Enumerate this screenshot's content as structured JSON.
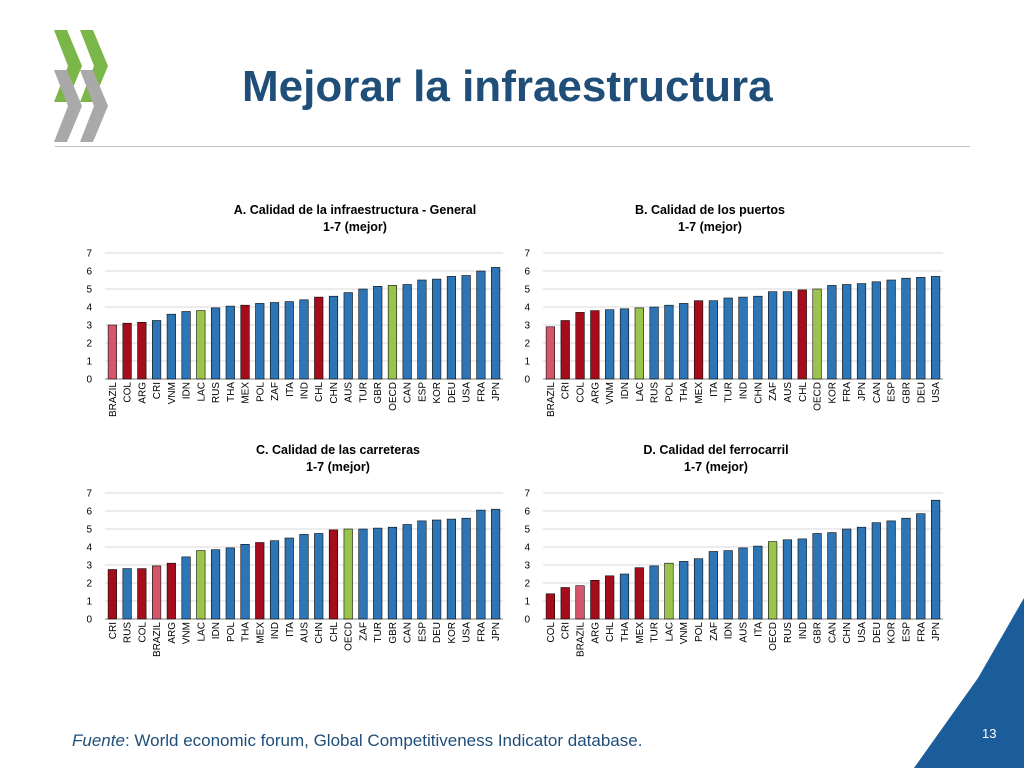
{
  "slide": {
    "title": "Mejorar la infraestructura",
    "source_label": "Fuente",
    "source_text": ": World economic forum, Global Competitiveness Indicator database.",
    "page_number": "13"
  },
  "colors": {
    "title": "#1f4e79",
    "blue_bar": "#2e75b6",
    "red_bar": "#a50d1c",
    "pink_bar": "#d4566a",
    "green_bar": "#9bc44c",
    "corner_blue": "#1a5d9a"
  },
  "chart_data": [
    {
      "type": "bar",
      "title": "A. Calidad de la infraestructura  - General",
      "subtitle": "1-7 (mejor)",
      "ylim": [
        0,
        7
      ],
      "yticks": [
        0,
        1,
        2,
        3,
        4,
        5,
        6,
        7
      ],
      "grid": true,
      "categories": [
        "BRAZIL",
        "COL",
        "ARG",
        "CRI",
        "VNM",
        "IDN",
        "LAC",
        "RUS",
        "THA",
        "MEX",
        "POL",
        "ZAF",
        "ITA",
        "IND",
        "CHL",
        "CHN",
        "AUS",
        "TUR",
        "GBR",
        "OECD",
        "CAN",
        "ESP",
        "KOR",
        "DEU",
        "USA",
        "FRA",
        "JPN"
      ],
      "values": [
        3.0,
        3.1,
        3.15,
        3.25,
        3.6,
        3.75,
        3.8,
        3.95,
        4.05,
        4.1,
        4.2,
        4.25,
        4.3,
        4.4,
        4.55,
        4.6,
        4.8,
        5.0,
        5.15,
        5.2,
        5.25,
        5.5,
        5.55,
        5.7,
        5.75,
        6.0,
        6.2
      ],
      "colors": [
        "pink",
        "red",
        "red",
        "blue",
        "blue",
        "blue",
        "green",
        "blue",
        "blue",
        "red",
        "blue",
        "blue",
        "blue",
        "blue",
        "red",
        "blue",
        "blue",
        "blue",
        "blue",
        "green",
        "blue",
        "blue",
        "blue",
        "blue",
        "blue",
        "blue",
        "blue"
      ]
    },
    {
      "type": "bar",
      "title": "B. Calidad de los puertos",
      "subtitle": "1-7 (mejor)",
      "ylim": [
        0,
        7
      ],
      "yticks": [
        0,
        1,
        2,
        3,
        4,
        5,
        6,
        7
      ],
      "grid": true,
      "categories": [
        "BRAZIL",
        "CRI",
        "COL",
        "ARG",
        "VNM",
        "IDN",
        "LAC",
        "RUS",
        "POL",
        "THA",
        "MEX",
        "ITA",
        "TUR",
        "IND",
        "CHN",
        "ZAF",
        "AUS",
        "CHL",
        "OECD",
        "KOR",
        "FRA",
        "JPN",
        "CAN",
        "ESP",
        "GBR",
        "DEU",
        "USA"
      ],
      "values": [
        2.9,
        3.25,
        3.7,
        3.8,
        3.85,
        3.9,
        3.95,
        4.0,
        4.1,
        4.2,
        4.35,
        4.35,
        4.5,
        4.55,
        4.6,
        4.85,
        4.85,
        4.95,
        5.0,
        5.2,
        5.25,
        5.3,
        5.4,
        5.5,
        5.6,
        5.65,
        5.7
      ],
      "colors": [
        "pink",
        "red",
        "red",
        "red",
        "blue",
        "blue",
        "green",
        "blue",
        "blue",
        "blue",
        "red",
        "blue",
        "blue",
        "blue",
        "blue",
        "blue",
        "blue",
        "red",
        "green",
        "blue",
        "blue",
        "blue",
        "blue",
        "blue",
        "blue",
        "blue",
        "blue"
      ]
    },
    {
      "type": "bar",
      "title": "C. Calidad de las carreteras",
      "subtitle": "1-7 (mejor)",
      "ylim": [
        0,
        7
      ],
      "yticks": [
        0,
        1,
        2,
        3,
        4,
        5,
        6,
        7
      ],
      "grid": true,
      "categories": [
        "CRI",
        "RUS",
        "COL",
        "BRAZIL",
        "ARG",
        "VNM",
        "LAC",
        "IDN",
        "POL",
        "THA",
        "MEX",
        "IND",
        "ITA",
        "AUS",
        "CHN",
        "CHL",
        "OECD",
        "ZAF",
        "TUR",
        "GBR",
        "CAN",
        "ESP",
        "DEU",
        "KOR",
        "USA",
        "FRA",
        "JPN"
      ],
      "values": [
        2.75,
        2.8,
        2.8,
        2.95,
        3.1,
        3.45,
        3.8,
        3.85,
        3.95,
        4.15,
        4.25,
        4.35,
        4.5,
        4.7,
        4.75,
        4.95,
        5.0,
        5.0,
        5.05,
        5.1,
        5.25,
        5.45,
        5.5,
        5.55,
        5.6,
        6.05,
        6.1
      ],
      "colors": [
        "red",
        "blue",
        "red",
        "pink",
        "red",
        "blue",
        "green",
        "blue",
        "blue",
        "blue",
        "red",
        "blue",
        "blue",
        "blue",
        "blue",
        "red",
        "green",
        "blue",
        "blue",
        "blue",
        "blue",
        "blue",
        "blue",
        "blue",
        "blue",
        "blue",
        "blue"
      ]
    },
    {
      "type": "bar",
      "title": "D. Calidad del ferrocarril",
      "subtitle": "1-7 (mejor)",
      "ylim": [
        0,
        7
      ],
      "yticks": [
        0,
        1,
        2,
        3,
        4,
        5,
        6,
        7
      ],
      "grid": true,
      "categories": [
        "COL",
        "CRI",
        "BRAZIL",
        "ARG",
        "CHL",
        "THA",
        "MEX",
        "TUR",
        "LAC",
        "VNM",
        "POL",
        "ZAF",
        "IDN",
        "AUS",
        "ITA",
        "OECD",
        "RUS",
        "IND",
        "GBR",
        "CAN",
        "CHN",
        "USA",
        "DEU",
        "KOR",
        "ESP",
        "FRA",
        "JPN"
      ],
      "values": [
        1.4,
        1.75,
        1.85,
        2.15,
        2.4,
        2.5,
        2.85,
        2.95,
        3.1,
        3.2,
        3.35,
        3.75,
        3.8,
        3.95,
        4.05,
        4.3,
        4.4,
        4.45,
        4.75,
        4.8,
        5.0,
        5.1,
        5.35,
        5.45,
        5.6,
        5.85,
        6.6
      ],
      "colors": [
        "red",
        "red",
        "pink",
        "red",
        "red",
        "blue",
        "red",
        "blue",
        "green",
        "blue",
        "blue",
        "blue",
        "blue",
        "blue",
        "blue",
        "green",
        "blue",
        "blue",
        "blue",
        "blue",
        "blue",
        "blue",
        "blue",
        "blue",
        "blue",
        "blue",
        "blue"
      ]
    }
  ]
}
